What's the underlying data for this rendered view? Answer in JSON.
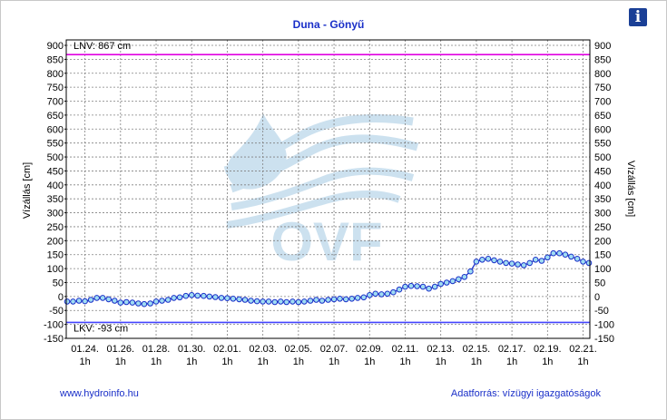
{
  "chart_data": {
    "type": "line",
    "title": "Duna - Gönyű",
    "ylabel_left": "Vízállás [cm]",
    "ylabel_right": "Vízállás [cm]",
    "ylim": [
      -150,
      900
    ],
    "ystep": 50,
    "grid": true,
    "x_start": "01.23. 1h",
    "x_ticks": [
      {
        "date": "01.24.",
        "hour": "1h",
        "day": 1
      },
      {
        "date": "01.26.",
        "hour": "1h",
        "day": 3
      },
      {
        "date": "01.28.",
        "hour": "1h",
        "day": 5
      },
      {
        "date": "01.30.",
        "hour": "1h",
        "day": 7
      },
      {
        "date": "02.01.",
        "hour": "1h",
        "day": 9
      },
      {
        "date": "02.03.",
        "hour": "1h",
        "day": 11
      },
      {
        "date": "02.05.",
        "hour": "1h",
        "day": 13
      },
      {
        "date": "02.07.",
        "hour": "1h",
        "day": 15
      },
      {
        "date": "02.09.",
        "hour": "1h",
        "day": 17
      },
      {
        "date": "02.11.",
        "hour": "1h",
        "day": 19
      },
      {
        "date": "02.13.",
        "hour": "1h",
        "day": 21
      },
      {
        "date": "02.15.",
        "hour": "1h",
        "day": 23
      },
      {
        "date": "02.17.",
        "hour": "1h",
        "day": 25
      },
      {
        "date": "02.19.",
        "hour": "1h",
        "day": 27
      },
      {
        "date": "02.21.",
        "hour": "1h",
        "day": 29
      }
    ],
    "reference_lines": [
      {
        "label": "LNV: 867 cm",
        "value": 867,
        "color": "#e000e0"
      },
      {
        "label": "LKV: -93 cm",
        "value": -93,
        "color": "#4444ff"
      }
    ],
    "series": [
      {
        "color": "#1a2fc8",
        "marker_fill": "#9fdcf2",
        "points": [
          [
            0.0,
            -18
          ],
          [
            0.33,
            -18
          ],
          [
            0.67,
            -15
          ],
          [
            1.0,
            -17
          ],
          [
            1.33,
            -12
          ],
          [
            1.67,
            -5
          ],
          [
            2.0,
            -5
          ],
          [
            2.33,
            -10
          ],
          [
            2.67,
            -15
          ],
          [
            3.0,
            -22
          ],
          [
            3.33,
            -20
          ],
          [
            3.67,
            -22
          ],
          [
            4.0,
            -25
          ],
          [
            4.33,
            -27
          ],
          [
            4.67,
            -25
          ],
          [
            5.0,
            -18
          ],
          [
            5.33,
            -15
          ],
          [
            5.67,
            -12
          ],
          [
            6.0,
            -5
          ],
          [
            6.33,
            -3
          ],
          [
            6.67,
            2
          ],
          [
            7.0,
            5
          ],
          [
            7.33,
            3
          ],
          [
            7.67,
            2
          ],
          [
            8.0,
            0
          ],
          [
            8.33,
            -2
          ],
          [
            8.67,
            -5
          ],
          [
            9.0,
            -6
          ],
          [
            9.33,
            -8
          ],
          [
            9.67,
            -10
          ],
          [
            10.0,
            -12
          ],
          [
            10.33,
            -15
          ],
          [
            10.67,
            -17
          ],
          [
            11.0,
            -18
          ],
          [
            11.33,
            -18
          ],
          [
            11.67,
            -20
          ],
          [
            12.0,
            -18
          ],
          [
            12.33,
            -20
          ],
          [
            12.67,
            -18
          ],
          [
            13.0,
            -20
          ],
          [
            13.33,
            -18
          ],
          [
            13.67,
            -15
          ],
          [
            14.0,
            -12
          ],
          [
            14.33,
            -15
          ],
          [
            14.67,
            -12
          ],
          [
            15.0,
            -10
          ],
          [
            15.33,
            -8
          ],
          [
            15.67,
            -10
          ],
          [
            16.0,
            -8
          ],
          [
            16.33,
            -5
          ],
          [
            16.67,
            -3
          ],
          [
            17.0,
            5
          ],
          [
            17.33,
            10
          ],
          [
            17.67,
            8
          ],
          [
            18.0,
            10
          ],
          [
            18.33,
            15
          ],
          [
            18.67,
            25
          ],
          [
            19.0,
            35
          ],
          [
            19.33,
            38
          ],
          [
            19.67,
            37
          ],
          [
            20.0,
            35
          ],
          [
            20.33,
            28
          ],
          [
            20.67,
            35
          ],
          [
            21.0,
            45
          ],
          [
            21.33,
            50
          ],
          [
            21.67,
            55
          ],
          [
            22.0,
            62
          ],
          [
            22.33,
            70
          ],
          [
            22.67,
            90
          ],
          [
            23.0,
            125
          ],
          [
            23.33,
            132
          ],
          [
            23.67,
            135
          ],
          [
            24.0,
            130
          ],
          [
            24.33,
            125
          ],
          [
            24.67,
            120
          ],
          [
            25.0,
            118
          ],
          [
            25.33,
            115
          ],
          [
            25.67,
            112
          ],
          [
            26.0,
            120
          ],
          [
            26.33,
            132
          ],
          [
            26.67,
            128
          ],
          [
            27.0,
            140
          ],
          [
            27.33,
            155
          ],
          [
            27.67,
            155
          ],
          [
            28.0,
            150
          ],
          [
            28.33,
            143
          ],
          [
            28.67,
            135
          ],
          [
            29.0,
            125
          ],
          [
            29.33,
            120
          ]
        ]
      }
    ]
  },
  "footer": {
    "left": "www.hydroinfo.hu",
    "right": "Adatforrás: vízügyi igazgatóságok"
  },
  "watermark": {
    "text": "OVF"
  },
  "info_button": {
    "label": "i"
  },
  "colors": {
    "accent": "#1a2fc8",
    "title": "#1a2fc8",
    "grid": "#808080"
  }
}
